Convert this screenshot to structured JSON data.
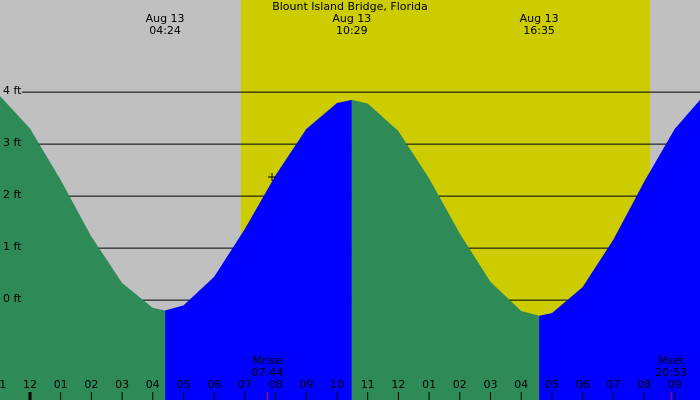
{
  "chart_data": {
    "type": "area",
    "title": "Blount Island Bridge, Florida",
    "background_color": "#c0c0c0",
    "daylight_color": "#cccc00",
    "daylight": [
      6.87,
      20.2
    ],
    "xlim": [
      -0.977,
      21.824
    ],
    "ylim": [
      -1.92,
      5.77
    ],
    "yticks": [
      {
        "value": 0,
        "label": "0 ft"
      },
      {
        "value": 1,
        "label": "1 ft"
      },
      {
        "value": 2,
        "label": "2 ft"
      },
      {
        "value": 3,
        "label": "3 ft"
      },
      {
        "value": 4,
        "label": "4 ft"
      }
    ],
    "xticks": [
      {
        "value": -1,
        "label": "11"
      },
      {
        "value": 0,
        "label": "12"
      },
      {
        "value": 1,
        "label": "01"
      },
      {
        "value": 2,
        "label": "02"
      },
      {
        "value": 3,
        "label": "03"
      },
      {
        "value": 4,
        "label": "04"
      },
      {
        "value": 5,
        "label": "05"
      },
      {
        "value": 6,
        "label": "06"
      },
      {
        "value": 7,
        "label": "07"
      },
      {
        "value": 8,
        "label": "08"
      },
      {
        "value": 9,
        "label": "09"
      },
      10,
      11,
      12,
      {
        "value": 13,
        "label": "01"
      },
      {
        "value": 14,
        "label": "02"
      },
      {
        "value": 15,
        "label": "03"
      },
      {
        "value": 16,
        "label": "04"
      },
      {
        "value": 17,
        "label": "05"
      },
      {
        "value": 18,
        "label": "06"
      },
      {
        "value": 19,
        "label": "07"
      },
      {
        "value": 20,
        "label": "08"
      },
      {
        "value": 21,
        "label": "09"
      }
    ],
    "grid": true,
    "segments": [
      {
        "color": "#2e8b57",
        "x": [
          -1,
          0,
          1,
          2,
          3,
          4,
          4.4
        ],
        "values": [
          3.94,
          3.3,
          2.31,
          1.22,
          0.33,
          -0.15,
          -0.2
        ]
      },
      {
        "color": "#0000ff",
        "x": [
          4.4,
          5,
          6,
          7,
          8,
          9,
          10,
          10.483
        ],
        "values": [
          -0.2,
          -0.1,
          0.45,
          1.37,
          2.4,
          3.29,
          3.79,
          3.85
        ]
      },
      {
        "color": "#2e8b57",
        "x": [
          10.483,
          11,
          12,
          13,
          14,
          15,
          16,
          16.583
        ],
        "values": [
          3.85,
          3.78,
          3.25,
          2.34,
          1.28,
          0.35,
          -0.21,
          -0.3
        ]
      },
      {
        "color": "#0000ff",
        "x": [
          16.583,
          17,
          18,
          19,
          20,
          21,
          22
        ],
        "values": [
          -0.3,
          -0.25,
          0.25,
          1.16,
          2.27,
          3.29,
          3.97
        ]
      }
    ],
    "extremes": [
      {
        "x": 4.4,
        "date": "Aug 13",
        "time": "04:24"
      },
      {
        "x": 10.483,
        "date": "Aug 13",
        "time": "10:29"
      },
      {
        "x": 16.583,
        "date": "Aug 13",
        "time": "16:35"
      }
    ],
    "moon_events": [
      {
        "x": 7.733,
        "label": "Mrise",
        "time": "07:44",
        "color": "#cc0066"
      },
      {
        "x": 20.883,
        "label": "Mset",
        "time": "20:53",
        "color": "#cc0066"
      }
    ]
  }
}
